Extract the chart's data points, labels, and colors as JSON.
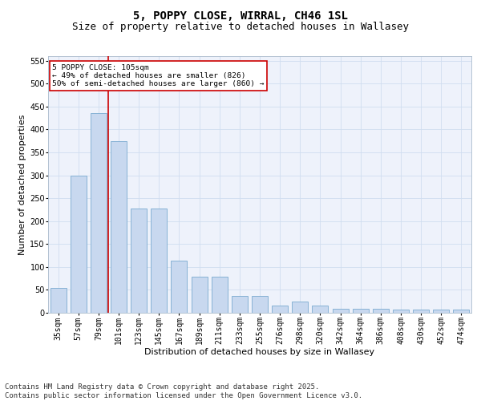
{
  "title1": "5, POPPY CLOSE, WIRRAL, CH46 1SL",
  "title2": "Size of property relative to detached houses in Wallasey",
  "xlabel": "Distribution of detached houses by size in Wallasey",
  "ylabel": "Number of detached properties",
  "categories": [
    "35sqm",
    "57sqm",
    "79sqm",
    "101sqm",
    "123sqm",
    "145sqm",
    "167sqm",
    "189sqm",
    "211sqm",
    "233sqm",
    "255sqm",
    "276sqm",
    "298sqm",
    "320sqm",
    "342sqm",
    "364sqm",
    "386sqm",
    "408sqm",
    "430sqm",
    "452sqm",
    "474sqm"
  ],
  "values": [
    55,
    300,
    435,
    375,
    228,
    228,
    113,
    78,
    78,
    37,
    37,
    15,
    25,
    15,
    8,
    8,
    8,
    7,
    7,
    7,
    7
  ],
  "bar_color": "#c8d8ef",
  "bar_edge_color": "#7aaad0",
  "grid_color": "#d0ddf0",
  "background_color": "#eef2fb",
  "red_line_index": 3,
  "annotation_text": "5 POPPY CLOSE: 105sqm\n← 49% of detached houses are smaller (826)\n50% of semi-detached houses are larger (860) →",
  "annotation_box_color": "#ffffff",
  "annotation_border_color": "#cc0000",
  "ylim": [
    0,
    560
  ],
  "yticks": [
    0,
    50,
    100,
    150,
    200,
    250,
    300,
    350,
    400,
    450,
    500,
    550
  ],
  "footer": "Contains HM Land Registry data © Crown copyright and database right 2025.\nContains public sector information licensed under the Open Government Licence v3.0.",
  "title_fontsize": 10,
  "subtitle_fontsize": 9,
  "label_fontsize": 8,
  "tick_fontsize": 7,
  "footer_fontsize": 6.5
}
